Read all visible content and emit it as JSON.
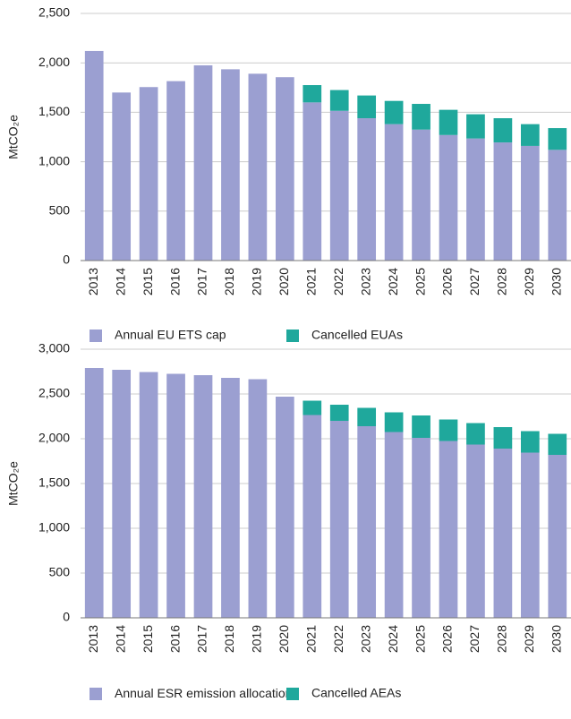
{
  "chart_data": [
    {
      "type": "stacked-bar",
      "y_label": "MtCO₂e",
      "categories": [
        "2013",
        "2014",
        "2015",
        "2016",
        "2017",
        "2018",
        "2019",
        "2020",
        "2021",
        "2022",
        "2023",
        "2024",
        "2025",
        "2026",
        "2027",
        "2028",
        "2029",
        "2030"
      ],
      "series": [
        {
          "name": "Annual EU ETS cap",
          "color": "#9b9fd1",
          "values": [
            2120,
            1700,
            1755,
            1815,
            1975,
            1935,
            1890,
            1855,
            1600,
            1515,
            1440,
            1380,
            1325,
            1270,
            1235,
            1195,
            1160,
            1120
          ]
        },
        {
          "name": "Cancelled EUAs",
          "color": "#1fa89c",
          "values": [
            null,
            null,
            null,
            null,
            null,
            null,
            null,
            null,
            175,
            210,
            230,
            235,
            260,
            255,
            245,
            245,
            220,
            220
          ]
        }
      ],
      "ylim": [
        0,
        2500
      ],
      "yticks": [
        0,
        500,
        {
          "value": 1000,
          "label": "1,000"
        },
        {
          "value": 1500,
          "label": "1,500"
        },
        {
          "value": 2000,
          "label": "2,000"
        },
        {
          "value": 2500,
          "label": "2,500"
        }
      ],
      "grid": true
    },
    {
      "type": "stacked-bar",
      "y_label": "MtCO₂e",
      "categories": [
        "2013",
        "2014",
        "2015",
        "2016",
        "2017",
        "2018",
        "2019",
        "2020",
        "2021",
        "2022",
        "2023",
        "2024",
        "2025",
        "2026",
        "2027",
        "2028",
        "2029",
        "2030"
      ],
      "series": [
        {
          "name": "Annual ESR emission allocations",
          "color": "#9b9fd1",
          "values": [
            2790,
            2770,
            2745,
            2725,
            2710,
            2680,
            2665,
            2470,
            2265,
            2200,
            2140,
            2075,
            2010,
            1975,
            1935,
            1890,
            1845,
            1820
          ]
        },
        {
          "name": "Cancelled AEAs",
          "color": "#1fa89c",
          "values": [
            null,
            null,
            null,
            null,
            null,
            null,
            null,
            null,
            160,
            180,
            205,
            220,
            250,
            240,
            240,
            240,
            240,
            235
          ]
        }
      ],
      "ylim": [
        0,
        3000
      ],
      "yticks": [
        0,
        500,
        {
          "value": 1000,
          "label": "1,000"
        },
        {
          "value": 1500,
          "label": "1,500"
        },
        {
          "value": 2000,
          "label": "2,000"
        },
        {
          "value": 2500,
          "label": "2,500"
        },
        {
          "value": 3000,
          "label": "3,000"
        }
      ],
      "grid": true
    }
  ]
}
